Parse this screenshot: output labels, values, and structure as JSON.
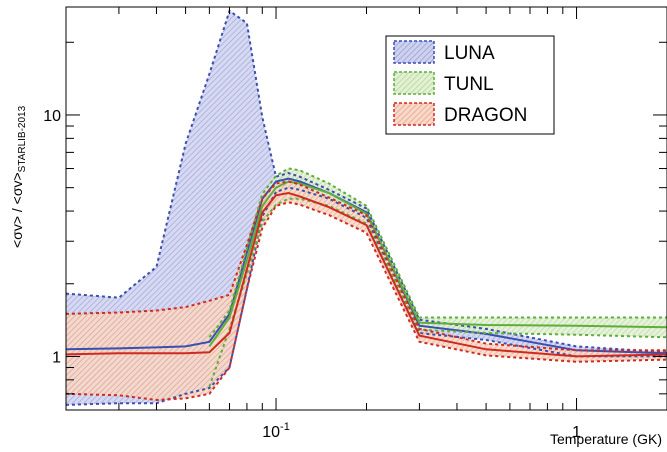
{
  "chart_data": {
    "type": "area",
    "xlabel": "Temperature (GK)",
    "ylabel_main": "<σv> / <σv>",
    "ylabel_sub": "STARLIB-2013",
    "x_scale": "log",
    "y_scale": "log",
    "xlim": [
      0.02,
      2.0
    ],
    "ylim": [
      0.6,
      28
    ],
    "x_ticks": [
      {
        "value": 0.1,
        "base": "10",
        "exp": "-1"
      },
      {
        "value": 1,
        "label": "1"
      }
    ],
    "y_ticks": [
      {
        "value": 1,
        "label": "1"
      },
      {
        "value": 10,
        "label": "10"
      }
    ],
    "legend_position": "top-right",
    "series": [
      {
        "name": "LUNA",
        "color": "#3a4fb0",
        "fill": "#aab0dc",
        "x": [
          0.02,
          0.03,
          0.04,
          0.05,
          0.06,
          0.07,
          0.08,
          0.09,
          0.1,
          0.11,
          0.12,
          0.15,
          0.2,
          0.3,
          0.5,
          1.0,
          2.0
        ],
        "upper": [
          1.82,
          1.75,
          2.35,
          7.6,
          14.8,
          27,
          24,
          9.8,
          5.55,
          5.75,
          5.55,
          4.9,
          4.1,
          1.42,
          1.3,
          1.1,
          1.04
        ],
        "central": [
          1.07,
          1.08,
          1.09,
          1.1,
          1.15,
          1.5,
          2.7,
          4.5,
          5.3,
          5.45,
          5.3,
          4.75,
          3.95,
          1.34,
          1.24,
          1.06,
          1.03
        ],
        "lower": [
          0.63,
          0.64,
          0.64,
          0.7,
          0.74,
          0.9,
          1.9,
          3.8,
          4.8,
          5.0,
          4.9,
          4.5,
          3.75,
          1.25,
          1.17,
          1.0,
          1.0
        ]
      },
      {
        "name": "TUNL",
        "color": "#5fae3a",
        "fill": "#c5e2b0",
        "x": [
          0.06,
          0.07,
          0.08,
          0.09,
          0.1,
          0.11,
          0.12,
          0.15,
          0.2,
          0.3,
          0.5,
          1.0,
          2.0
        ],
        "upper": [
          1.2,
          1.55,
          2.8,
          4.7,
          5.6,
          6.0,
          5.9,
          5.2,
          4.2,
          1.45,
          1.45,
          1.45,
          1.45
        ],
        "central": [
          1.1,
          1.45,
          2.5,
          4.2,
          5.0,
          5.3,
          5.2,
          4.75,
          3.9,
          1.38,
          1.35,
          1.34,
          1.32
        ],
        "lower": [
          0.75,
          1.3,
          2.2,
          3.6,
          4.25,
          4.5,
          4.5,
          4.2,
          3.55,
          1.29,
          1.25,
          1.23,
          1.2
        ]
      },
      {
        "name": "DRAGON",
        "color": "#d02a20",
        "fill": "#f0b8a4",
        "x": [
          0.02,
          0.03,
          0.04,
          0.05,
          0.06,
          0.07,
          0.08,
          0.09,
          0.1,
          0.11,
          0.12,
          0.15,
          0.2,
          0.3,
          0.5,
          1.0,
          2.0
        ],
        "upper": [
          1.5,
          1.52,
          1.55,
          1.6,
          1.7,
          1.8,
          2.9,
          4.5,
          5.2,
          5.3,
          5.15,
          4.55,
          3.85,
          1.3,
          1.13,
          1.06,
          1.06
        ],
        "central": [
          1.02,
          1.03,
          1.03,
          1.03,
          1.04,
          1.25,
          2.3,
          3.95,
          4.65,
          4.75,
          4.6,
          4.15,
          3.5,
          1.22,
          1.07,
          1.0,
          1.02
        ],
        "lower": [
          0.7,
          0.69,
          0.66,
          0.67,
          0.7,
          0.9,
          1.9,
          3.4,
          4.2,
          4.35,
          4.25,
          3.85,
          3.25,
          1.15,
          1.01,
          0.95,
          0.97
        ]
      }
    ]
  }
}
